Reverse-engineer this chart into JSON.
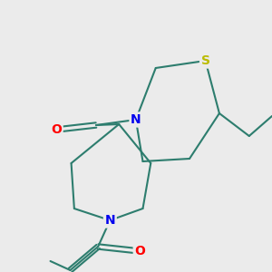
{
  "background_color": "#ebebeb",
  "bond_color": "#2d7d6e",
  "atom_colors": {
    "N": "#0000ee",
    "O": "#ff0000",
    "S": "#bbbb00"
  },
  "atom_bg": "#ebebeb",
  "line_width": 1.5,
  "font_size": 10,
  "figsize": [
    3.0,
    3.0
  ],
  "dpi": 100
}
